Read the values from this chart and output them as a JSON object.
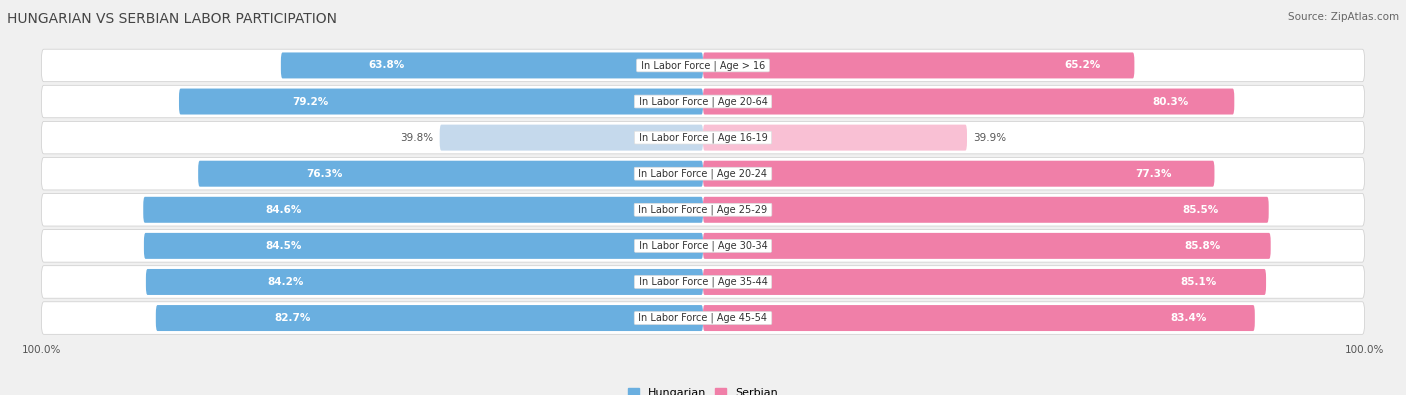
{
  "title": "HUNGARIAN VS SERBIAN LABOR PARTICIPATION",
  "source": "Source: ZipAtlas.com",
  "categories": [
    "In Labor Force | Age > 16",
    "In Labor Force | Age 20-64",
    "In Labor Force | Age 16-19",
    "In Labor Force | Age 20-24",
    "In Labor Force | Age 25-29",
    "In Labor Force | Age 30-34",
    "In Labor Force | Age 35-44",
    "In Labor Force | Age 45-54"
  ],
  "hungarian_values": [
    63.8,
    79.2,
    39.8,
    76.3,
    84.6,
    84.5,
    84.2,
    82.7
  ],
  "serbian_values": [
    65.2,
    80.3,
    39.9,
    77.3,
    85.5,
    85.8,
    85.1,
    83.4
  ],
  "hungarian_color": "#6aafe0",
  "serbian_color": "#f07fa8",
  "hungarian_light_color": "#c5d9ec",
  "serbian_light_color": "#f9c0d4",
  "label_color_dark": "#555555",
  "background_color": "#f0f0f0",
  "row_bg_dark": "#e0e0e0",
  "row_bg_light": "#f0f0f0",
  "max_value": 100.0,
  "legend_labels": [
    "Hungarian",
    "Serbian"
  ],
  "title_fontsize": 10,
  "bar_label_fontsize": 7.5,
  "cat_label_fontsize": 7,
  "axis_label_fontsize": 7.5
}
